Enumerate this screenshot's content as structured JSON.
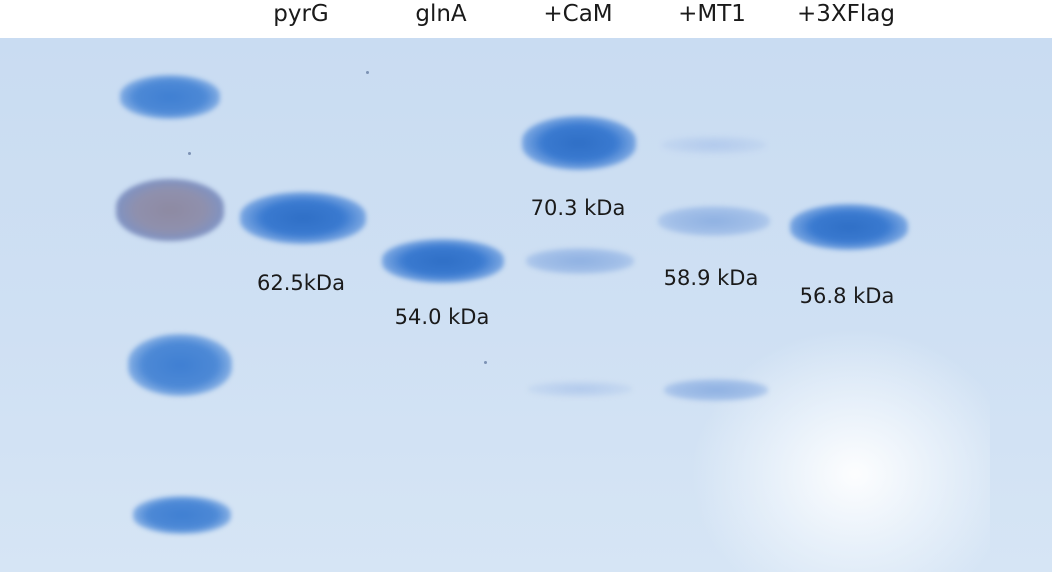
{
  "lanes": [
    {
      "label": "pyrG",
      "mass": "62.5kDa"
    },
    {
      "label": "glnA",
      "mass": "54.0 kDa"
    },
    {
      "label": "+CaM",
      "mass": "70.3 kDa"
    },
    {
      "label": "+MT1",
      "mass": "58.9 kDa"
    },
    {
      "label": "+3XFlag",
      "mass": "56.8 kDa"
    }
  ]
}
